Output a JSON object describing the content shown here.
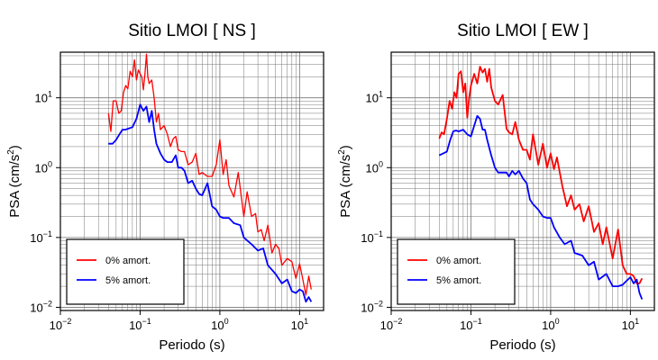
{
  "chart_data": [
    {
      "type": "line",
      "title": "Sitio LMOI [ NS ]",
      "xlabel": "Periodo (s)",
      "ylabel": "PSA (cm/s",
      "ylabel_sup": "2",
      "ylabel_close": ")",
      "x_scale": "log",
      "y_scale": "log",
      "xlim": [
        0.01,
        20
      ],
      "ylim": [
        0.009,
        45
      ],
      "grid": true,
      "legend_position": "bottom-left",
      "x_tick_labels": [
        {
          "base": "10",
          "exp": "−2"
        },
        {
          "base": "10",
          "exp": "−1"
        },
        {
          "base": "10",
          "exp": "0"
        },
        {
          "base": "10",
          "exp": "1"
        }
      ],
      "y_tick_labels": [
        {
          "base": "10",
          "exp": "−2"
        },
        {
          "base": "10",
          "exp": "−1"
        },
        {
          "base": "10",
          "exp": "0"
        },
        {
          "base": "10",
          "exp": "1"
        }
      ],
      "series": [
        {
          "name": "0% amort.",
          "color": "#ff0000",
          "width": 1.3,
          "x": [
            0.04,
            0.043,
            0.046,
            0.05,
            0.054,
            0.058,
            0.062,
            0.066,
            0.07,
            0.075,
            0.08,
            0.085,
            0.09,
            0.095,
            0.1,
            0.105,
            0.11,
            0.115,
            0.12,
            0.125,
            0.13,
            0.14,
            0.15,
            0.16,
            0.17,
            0.18,
            0.2,
            0.22,
            0.24,
            0.26,
            0.28,
            0.3,
            0.33,
            0.36,
            0.4,
            0.45,
            0.5,
            0.55,
            0.6,
            0.7,
            0.8,
            0.9,
            1.0,
            1.1,
            1.2,
            1.3,
            1.5,
            1.7,
            2.0,
            2.2,
            2.5,
            2.8,
            3.0,
            3.3,
            3.6,
            4.0,
            4.5,
            5.0,
            5.5,
            6.0,
            7.0,
            8.0,
            9.0,
            10.0,
            11.0,
            12.0,
            13.0,
            14.0
          ],
          "y": [
            6.0,
            3.3,
            9.0,
            9.0,
            6.0,
            6.5,
            12.0,
            15.0,
            13.5,
            24.0,
            20.0,
            35.0,
            18.0,
            25.0,
            22.0,
            20.0,
            13.0,
            22.0,
            42.0,
            20.0,
            16.0,
            18.0,
            10.0,
            4.5,
            6.0,
            3.5,
            4.0,
            3.0,
            2.0,
            2.6,
            2.8,
            1.8,
            1.7,
            1.7,
            1.1,
            1.2,
            1.6,
            0.8,
            0.85,
            0.75,
            0.75,
            1.1,
            2.5,
            0.8,
            1.3,
            0.55,
            0.38,
            0.85,
            0.2,
            0.45,
            0.2,
            0.22,
            0.12,
            0.13,
            0.09,
            0.15,
            0.06,
            0.08,
            0.07,
            0.04,
            0.05,
            0.045,
            0.026,
            0.042,
            0.025,
            0.015,
            0.028,
            0.018
          ]
        },
        {
          "name": "5% amort.",
          "color": "#0000ff",
          "width": 1.8,
          "x": [
            0.04,
            0.045,
            0.05,
            0.055,
            0.06,
            0.065,
            0.07,
            0.08,
            0.09,
            0.1,
            0.11,
            0.12,
            0.13,
            0.14,
            0.15,
            0.16,
            0.18,
            0.2,
            0.22,
            0.25,
            0.28,
            0.3,
            0.33,
            0.36,
            0.4,
            0.45,
            0.5,
            0.55,
            0.6,
            0.7,
            0.8,
            0.9,
            1.0,
            1.1,
            1.3,
            1.5,
            1.8,
            2.0,
            2.5,
            3.0,
            3.5,
            4.0,
            5.0,
            6.0,
            7.0,
            8.0,
            9.0,
            10.0,
            11.0,
            12.0,
            13.0,
            14.0
          ],
          "y": [
            2.2,
            2.2,
            2.5,
            3.0,
            3.5,
            3.5,
            3.6,
            3.8,
            5.0,
            8.0,
            6.5,
            7.5,
            4.5,
            6.5,
            3.5,
            2.2,
            1.6,
            1.3,
            1.2,
            1.2,
            1.5,
            1.0,
            1.0,
            0.9,
            0.6,
            0.65,
            0.5,
            0.42,
            0.4,
            0.6,
            0.28,
            0.25,
            0.2,
            0.19,
            0.19,
            0.16,
            0.15,
            0.1,
            0.08,
            0.065,
            0.07,
            0.04,
            0.03,
            0.022,
            0.025,
            0.017,
            0.016,
            0.018,
            0.017,
            0.012,
            0.014,
            0.012
          ]
        }
      ]
    },
    {
      "type": "line",
      "title": "Sitio LMOI [ EW ]",
      "xlabel": "Periodo (s)",
      "ylabel": "PSA (cm/s",
      "ylabel_sup": "2",
      "ylabel_close": ")",
      "x_scale": "log",
      "y_scale": "log",
      "xlim": [
        0.01,
        20
      ],
      "ylim": [
        0.009,
        45
      ],
      "grid": true,
      "legend_position": "bottom-left",
      "x_tick_labels": [
        {
          "base": "10",
          "exp": "−2"
        },
        {
          "base": "10",
          "exp": "−1"
        },
        {
          "base": "10",
          "exp": "0"
        },
        {
          "base": "10",
          "exp": "1"
        }
      ],
      "y_tick_labels": [
        {
          "base": "10",
          "exp": "−2"
        },
        {
          "base": "10",
          "exp": "−1"
        },
        {
          "base": "10",
          "exp": "0"
        },
        {
          "base": "10",
          "exp": "1"
        }
      ],
      "series": [
        {
          "name": "0% amort.",
          "color": "#ff0000",
          "width": 1.8,
          "x": [
            0.04,
            0.043,
            0.046,
            0.05,
            0.054,
            0.058,
            0.062,
            0.066,
            0.07,
            0.075,
            0.08,
            0.085,
            0.09,
            0.095,
            0.1,
            0.11,
            0.12,
            0.13,
            0.14,
            0.15,
            0.16,
            0.17,
            0.18,
            0.2,
            0.22,
            0.25,
            0.28,
            0.3,
            0.33,
            0.36,
            0.4,
            0.45,
            0.5,
            0.55,
            0.6,
            0.7,
            0.8,
            0.9,
            1.0,
            1.1,
            1.2,
            1.4,
            1.6,
            1.8,
            2.0,
            2.3,
            2.6,
            3.0,
            3.5,
            4.0,
            4.5,
            5.0,
            6.0,
            7.0,
            8.0,
            9.0,
            10.0,
            11.0,
            12.0,
            13.0,
            14.0
          ],
          "y": [
            2.6,
            3.2,
            3.0,
            5.0,
            9.0,
            7.0,
            12.0,
            10.0,
            22.0,
            24.0,
            12.0,
            16.0,
            5.2,
            10.0,
            15.0,
            22.0,
            16.0,
            28.0,
            23.0,
            26.0,
            17.0,
            26.0,
            14.0,
            9.0,
            8.0,
            11.0,
            3.6,
            3.2,
            3.0,
            4.5,
            2.5,
            1.8,
            1.8,
            1.3,
            3.0,
            1.1,
            2.2,
            1.0,
            1.6,
            0.95,
            1.4,
            0.55,
            0.28,
            0.4,
            0.25,
            0.3,
            0.17,
            0.28,
            0.12,
            0.16,
            0.08,
            0.14,
            0.05,
            0.13,
            0.04,
            0.03,
            0.03,
            0.028,
            0.022,
            0.022,
            0.026
          ]
        },
        {
          "name": "5% amort.",
          "color": "#0000ff",
          "width": 1.8,
          "x": [
            0.04,
            0.045,
            0.05,
            0.055,
            0.06,
            0.065,
            0.07,
            0.08,
            0.09,
            0.1,
            0.11,
            0.12,
            0.13,
            0.14,
            0.15,
            0.16,
            0.18,
            0.2,
            0.22,
            0.25,
            0.28,
            0.3,
            0.33,
            0.36,
            0.4,
            0.45,
            0.5,
            0.55,
            0.6,
            0.7,
            0.8,
            0.9,
            1.0,
            1.1,
            1.3,
            1.5,
            1.8,
            2.0,
            2.5,
            3.0,
            3.5,
            4.0,
            5.0,
            6.0,
            7.0,
            8.0,
            9.0,
            10.0,
            11.0,
            12.0,
            13.0,
            14.0
          ],
          "y": [
            1.5,
            1.6,
            1.7,
            2.5,
            3.3,
            3.4,
            3.3,
            3.5,
            3.0,
            2.8,
            4.0,
            5.5,
            5.0,
            3.5,
            3.5,
            2.5,
            1.5,
            1.0,
            0.85,
            0.85,
            0.85,
            0.75,
            0.9,
            0.8,
            0.9,
            0.7,
            0.6,
            0.35,
            0.3,
            0.25,
            0.2,
            0.19,
            0.19,
            0.14,
            0.1,
            0.08,
            0.09,
            0.06,
            0.055,
            0.04,
            0.045,
            0.025,
            0.03,
            0.02,
            0.02,
            0.021,
            0.024,
            0.027,
            0.022,
            0.025,
            0.016,
            0.013
          ]
        }
      ]
    }
  ]
}
